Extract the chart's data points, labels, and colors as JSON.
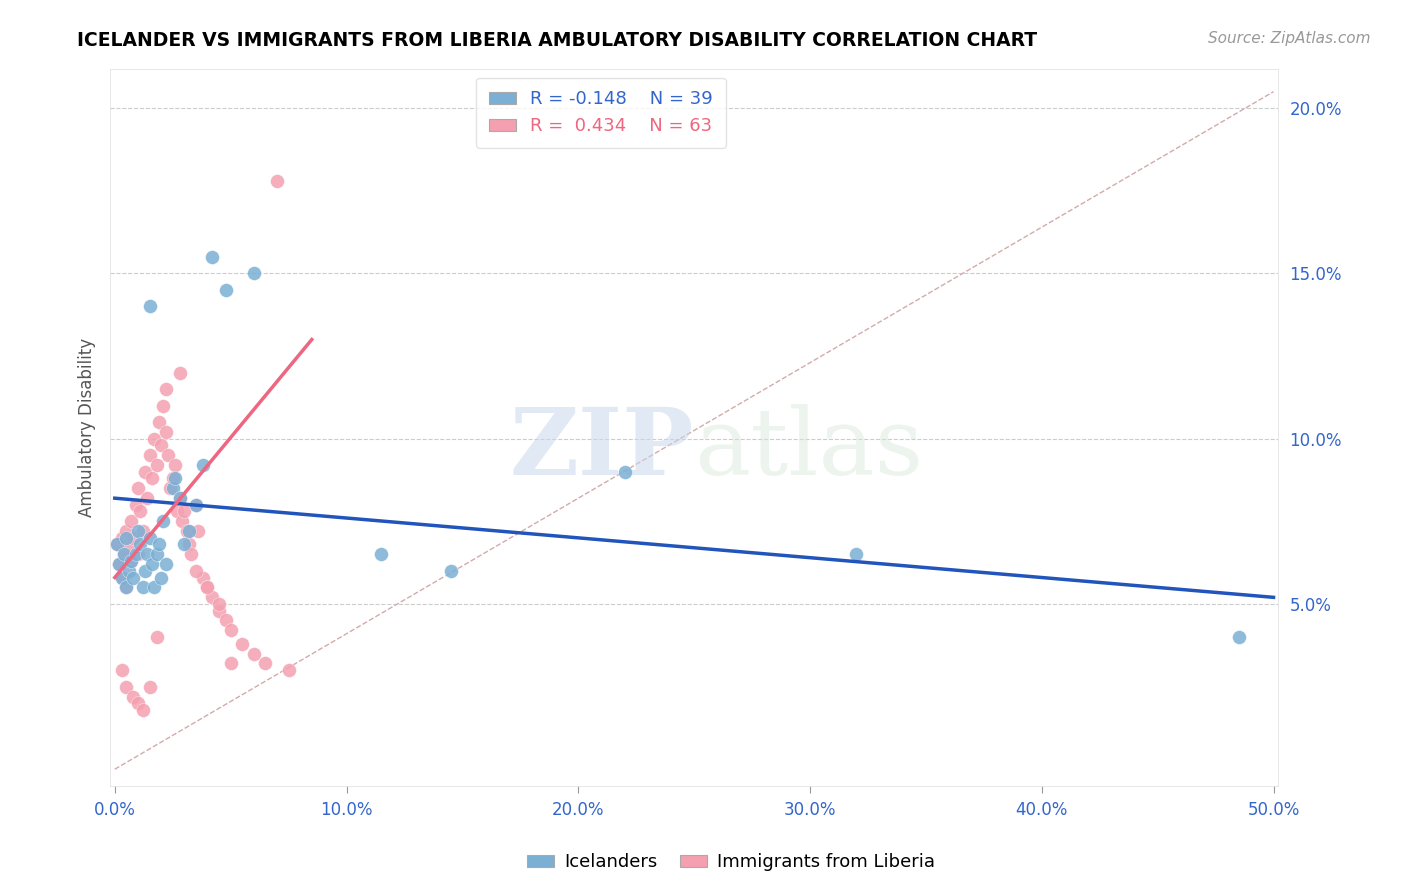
{
  "title": "ICELANDER VS IMMIGRANTS FROM LIBERIA AMBULATORY DISABILITY CORRELATION CHART",
  "source": "Source: ZipAtlas.com",
  "xlabel_blue": "Icelanders",
  "xlabel_pink": "Immigrants from Liberia",
  "ylabel": "Ambulatory Disability",
  "xlim": [
    -0.002,
    0.502
  ],
  "ylim": [
    -0.005,
    0.212
  ],
  "xticks": [
    0.0,
    0.1,
    0.2,
    0.3,
    0.4,
    0.5
  ],
  "yticks": [
    0.05,
    0.1,
    0.15,
    0.2
  ],
  "ytick_labels": [
    "5.0%",
    "10.0%",
    "15.0%",
    "20.0%"
  ],
  "xtick_labels": [
    "0.0%",
    "10.0%",
    "20.0%",
    "30.0%",
    "40.0%",
    "50.0%"
  ],
  "legend_blue_R": "R = -0.148",
  "legend_blue_N": "N = 39",
  "legend_pink_R": "R =  0.434",
  "legend_pink_N": "N = 63",
  "blue_color": "#7BAFD4",
  "pink_color": "#F4A0B0",
  "blue_line_color": "#2255BB",
  "pink_line_color": "#EE6680",
  "diagonal_color": "#D4AAAA",
  "watermark_zip": "ZIP",
  "watermark_atlas": "atlas",
  "blue_scatter_x": [
    0.001,
    0.002,
    0.003,
    0.004,
    0.005,
    0.005,
    0.006,
    0.007,
    0.008,
    0.009,
    0.01,
    0.011,
    0.012,
    0.013,
    0.014,
    0.015,
    0.015,
    0.016,
    0.017,
    0.018,
    0.019,
    0.02,
    0.021,
    0.022,
    0.025,
    0.026,
    0.028,
    0.03,
    0.032,
    0.035,
    0.038,
    0.042,
    0.048,
    0.06,
    0.115,
    0.145,
    0.22,
    0.32,
    0.485
  ],
  "blue_scatter_y": [
    0.068,
    0.062,
    0.058,
    0.065,
    0.055,
    0.07,
    0.06,
    0.063,
    0.058,
    0.065,
    0.072,
    0.068,
    0.055,
    0.06,
    0.065,
    0.07,
    0.14,
    0.062,
    0.055,
    0.065,
    0.068,
    0.058,
    0.075,
    0.062,
    0.085,
    0.088,
    0.082,
    0.068,
    0.072,
    0.08,
    0.092,
    0.155,
    0.145,
    0.15,
    0.065,
    0.06,
    0.09,
    0.065,
    0.04
  ],
  "pink_scatter_x": [
    0.001,
    0.002,
    0.003,
    0.003,
    0.004,
    0.005,
    0.005,
    0.006,
    0.007,
    0.007,
    0.008,
    0.009,
    0.01,
    0.01,
    0.011,
    0.012,
    0.013,
    0.014,
    0.015,
    0.016,
    0.017,
    0.018,
    0.019,
    0.02,
    0.021,
    0.022,
    0.023,
    0.024,
    0.025,
    0.026,
    0.027,
    0.028,
    0.029,
    0.03,
    0.031,
    0.032,
    0.033,
    0.035,
    0.036,
    0.038,
    0.04,
    0.042,
    0.045,
    0.048,
    0.05,
    0.055,
    0.06,
    0.065,
    0.07,
    0.075,
    0.003,
    0.005,
    0.008,
    0.01,
    0.012,
    0.015,
    0.018,
    0.022,
    0.028,
    0.035,
    0.04,
    0.045,
    0.05
  ],
  "pink_scatter_y": [
    0.068,
    0.062,
    0.07,
    0.058,
    0.065,
    0.055,
    0.072,
    0.068,
    0.063,
    0.075,
    0.07,
    0.08,
    0.065,
    0.085,
    0.078,
    0.072,
    0.09,
    0.082,
    0.095,
    0.088,
    0.1,
    0.092,
    0.105,
    0.098,
    0.11,
    0.102,
    0.095,
    0.085,
    0.088,
    0.092,
    0.078,
    0.082,
    0.075,
    0.078,
    0.072,
    0.068,
    0.065,
    0.08,
    0.072,
    0.058,
    0.055,
    0.052,
    0.048,
    0.045,
    0.042,
    0.038,
    0.035,
    0.032,
    0.178,
    0.03,
    0.03,
    0.025,
    0.022,
    0.02,
    0.018,
    0.025,
    0.04,
    0.115,
    0.12,
    0.06,
    0.055,
    0.05,
    0.032
  ],
  "blue_line_x": [
    0.0,
    0.5
  ],
  "blue_line_y": [
    0.082,
    0.052
  ],
  "pink_line_x": [
    0.0,
    0.085
  ],
  "pink_line_y": [
    0.058,
    0.13
  ],
  "diag_line_x": [
    0.0,
    0.5
  ],
  "diag_line_y": [
    0.0,
    0.205
  ]
}
